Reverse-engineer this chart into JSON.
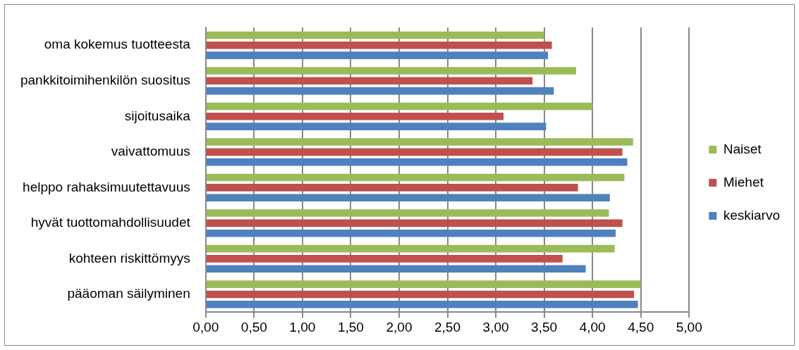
{
  "chart_data": {
    "type": "bar",
    "orientation": "horizontal",
    "categories": [
      "oma kokemus tuotteesta",
      "pankkitoimihenkilön suositus",
      "sijoitusaika",
      "vaivattomuus",
      "helppo rahaksimuutettavuus",
      "hyvät tuottomahdollisuudet",
      "kohteen riskittömyys",
      "pääoman säilyminen"
    ],
    "series": [
      {
        "name": "Naiset",
        "color": "#9bbb59",
        "values": [
          3.5,
          3.83,
          4.0,
          4.42,
          4.33,
          4.17,
          4.23,
          4.5
        ]
      },
      {
        "name": "Miehet",
        "color": "#c0504d",
        "values": [
          3.58,
          3.38,
          3.08,
          4.31,
          3.85,
          4.31,
          3.69,
          4.43
        ]
      },
      {
        "name": "keskiarvo",
        "color": "#4f81bd",
        "values": [
          3.54,
          3.6,
          3.52,
          4.36,
          4.18,
          4.24,
          3.93,
          4.47
        ]
      }
    ],
    "xlim": [
      0,
      5
    ],
    "xticks": [
      {
        "value": 0,
        "label": "0,00"
      },
      {
        "value": 0.5,
        "label": "0,50"
      },
      {
        "value": 1,
        "label": "1,00"
      },
      {
        "value": 1.5,
        "label": "1,50"
      },
      {
        "value": 2,
        "label": "2,00"
      },
      {
        "value": 2.5,
        "label": "2,50"
      },
      {
        "value": 3,
        "label": "3,00"
      },
      {
        "value": 3.5,
        "label": "3,50"
      },
      {
        "value": 4,
        "label": "4,00"
      },
      {
        "value": 4.5,
        "label": "4,50"
      },
      {
        "value": 5,
        "label": "5,00"
      }
    ],
    "grid": "x",
    "legend": "right"
  }
}
